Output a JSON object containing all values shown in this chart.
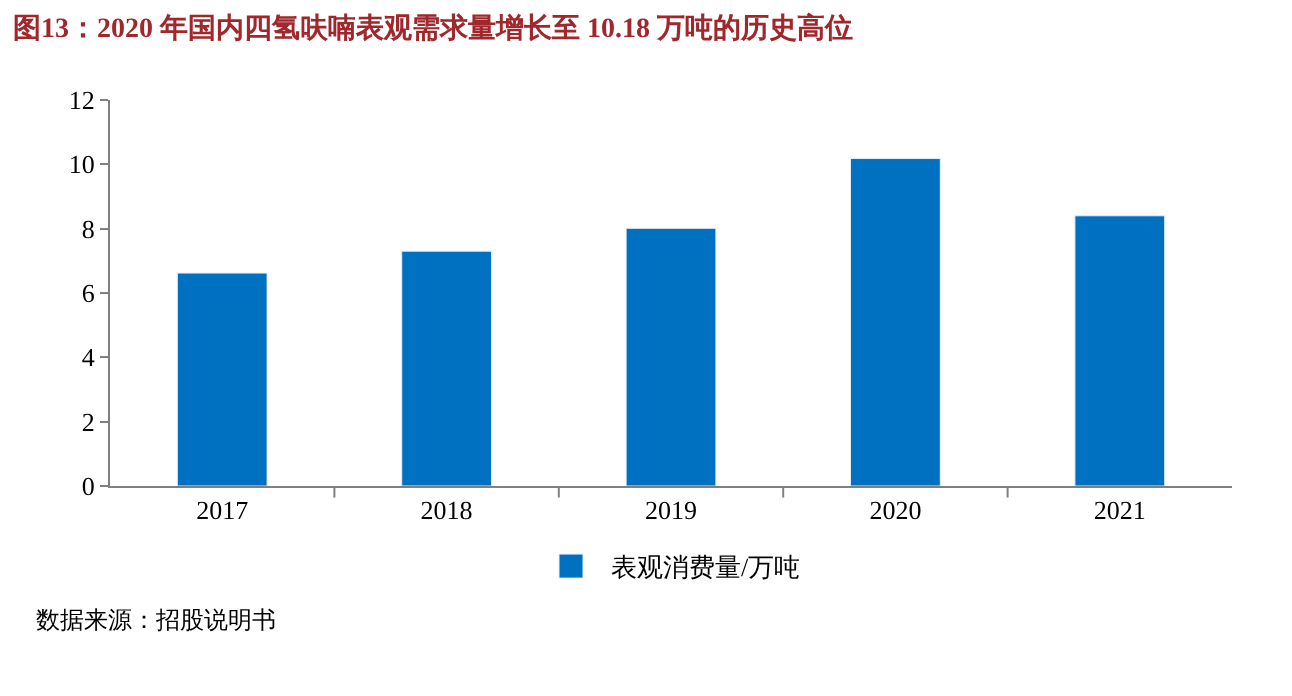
{
  "chart_data": {
    "type": "bar",
    "title": "图13：2020 年国内四氢呋喃表观需求量增长至 10.18 万吨的历史高位",
    "categories": [
      "2017",
      "2018",
      "2019",
      "2020",
      "2021"
    ],
    "series": [
      {
        "name": "表观消费量/万吨",
        "color": "#0070c0",
        "values": [
          6.62,
          7.3,
          8.01,
          10.18,
          8.4
        ]
      }
    ],
    "ylim": [
      0,
      12
    ],
    "yticks": [
      0,
      2,
      4,
      6,
      8,
      10,
      12
    ],
    "legend": "bottom",
    "annotations": [
      "数据来源：招股说明书"
    ]
  }
}
